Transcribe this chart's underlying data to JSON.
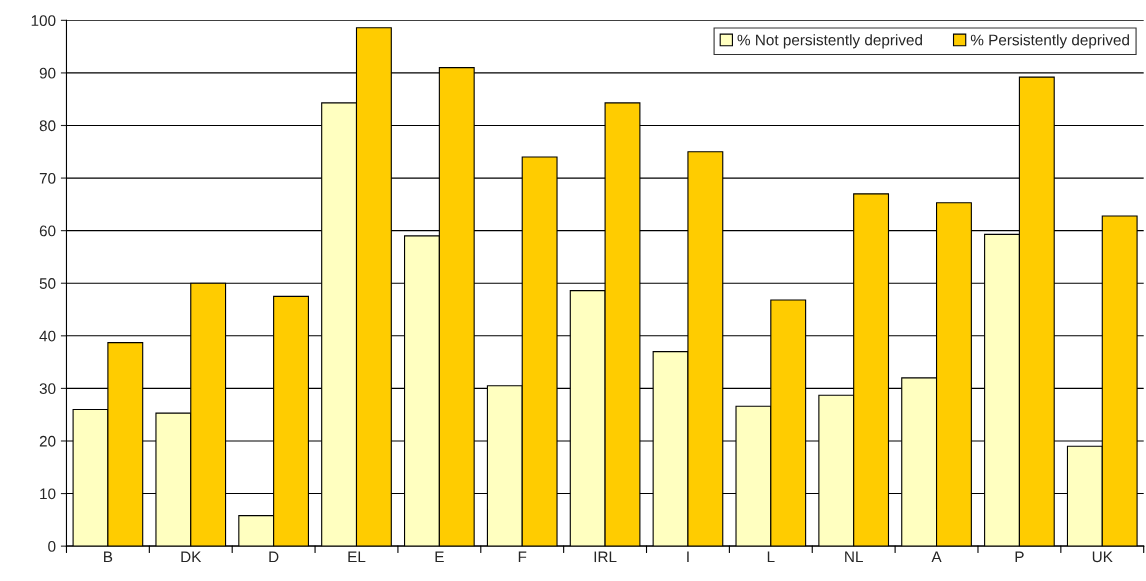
{
  "chart_data": {
    "type": "bar",
    "categories": [
      "B",
      "DK",
      "D",
      "EL",
      "E",
      "F",
      "IRL",
      "I",
      "L",
      "NL",
      "A",
      "P",
      "UK"
    ],
    "series": [
      {
        "name": "% Not persistently deprived",
        "color": "#ffffc0",
        "values": [
          26,
          25.3,
          5.8,
          84.3,
          59,
          30.5,
          48.6,
          37,
          26.6,
          28.7,
          32,
          59.3,
          19
        ]
      },
      {
        "name": "% Persistently deprived",
        "color": "#ffcc00",
        "values": [
          38.7,
          50,
          47.5,
          98.6,
          91,
          74,
          84.3,
          75,
          46.8,
          67,
          65.3,
          89.2,
          62.8
        ]
      }
    ],
    "ylim": [
      0,
      100
    ],
    "yticks": [
      0,
      10,
      20,
      30,
      40,
      50,
      60,
      70,
      80,
      90,
      100
    ],
    "grid": "y",
    "legend": "top right"
  }
}
